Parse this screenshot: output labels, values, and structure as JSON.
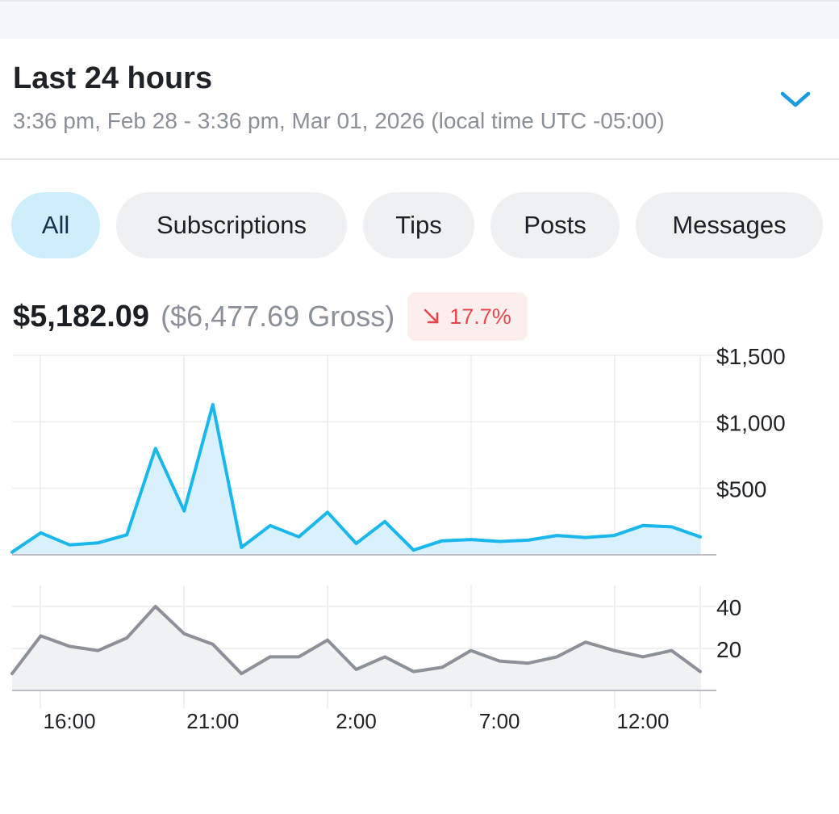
{
  "range": {
    "title": "Last 24 hours",
    "subtitle": "3:36 pm, Feb 28 - 3:36 pm, Mar 01, 2026 (local time UTC -05:00)"
  },
  "filters": [
    {
      "label": "All",
      "active": true
    },
    {
      "label": "Subscriptions",
      "active": false
    },
    {
      "label": "Tips",
      "active": false
    },
    {
      "label": "Posts",
      "active": false
    },
    {
      "label": "Messages",
      "active": false
    }
  ],
  "totals": {
    "net": "$5,182.09",
    "gross": "($6,477.69 Gross)",
    "change": "17.7%",
    "change_direction": "down"
  },
  "colors": {
    "earnings_line": "#1ab7ec",
    "earnings_fill": "#d9f1fc",
    "count_line": "#8b9099",
    "count_fill": "#f0f1f3",
    "badge_text": "#e5484d",
    "badge_bg": "#fdeeee",
    "chip_active_bg": "#cfeefd",
    "chip_bg": "#eff0f2"
  },
  "icons": {
    "range_toggle": "chevron-down-icon",
    "change": "arrow-down-right-icon"
  },
  "chart_data": [
    {
      "type": "area",
      "title": "",
      "xlabel": "",
      "ylabel": "",
      "ylim": [
        0,
        1500
      ],
      "yticks": [
        "$500",
        "$1,000",
        "$1,500"
      ],
      "ytick_values": [
        500,
        1000,
        1500
      ],
      "x": [
        "14:00",
        "15:00",
        "16:00",
        "17:00",
        "18:00",
        "19:00",
        "20:00",
        "21:00",
        "22:00",
        "23:00",
        "0:00",
        "1:00",
        "2:00",
        "3:00",
        "4:00",
        "5:00",
        "6:00",
        "7:00",
        "8:00",
        "9:00",
        "10:00",
        "11:00",
        "12:00",
        "13:00",
        "14:00"
      ],
      "series": [
        {
          "values": [
            20,
            165,
            75,
            90,
            150,
            800,
            330,
            1130,
            55,
            220,
            135,
            320,
            85,
            250,
            35,
            105,
            115,
            100,
            110,
            145,
            130,
            145,
            220,
            210,
            135
          ]
        }
      ],
      "grid": true,
      "legend": "none"
    },
    {
      "type": "area",
      "title": "",
      "xlabel": "",
      "ylabel": "",
      "ylim": [
        0,
        50
      ],
      "yticks": [
        "20",
        "40"
      ],
      "ytick_values": [
        20,
        40
      ],
      "x": [
        "14:00",
        "15:00",
        "16:00",
        "17:00",
        "18:00",
        "19:00",
        "20:00",
        "21:00",
        "22:00",
        "23:00",
        "0:00",
        "1:00",
        "2:00",
        "3:00",
        "4:00",
        "5:00",
        "6:00",
        "7:00",
        "8:00",
        "9:00",
        "10:00",
        "11:00",
        "12:00",
        "13:00",
        "14:00"
      ],
      "xticks": [
        "16:00",
        "21:00",
        "2:00",
        "7:00",
        "12:00"
      ],
      "series": [
        {
          "values": [
            8,
            26,
            21,
            19,
            25,
            40,
            27,
            22,
            8,
            16,
            16,
            24,
            10,
            16,
            9,
            11,
            19,
            14,
            13,
            16,
            23,
            19,
            16,
            19,
            9
          ]
        }
      ],
      "grid": true,
      "legend": "none"
    }
  ]
}
